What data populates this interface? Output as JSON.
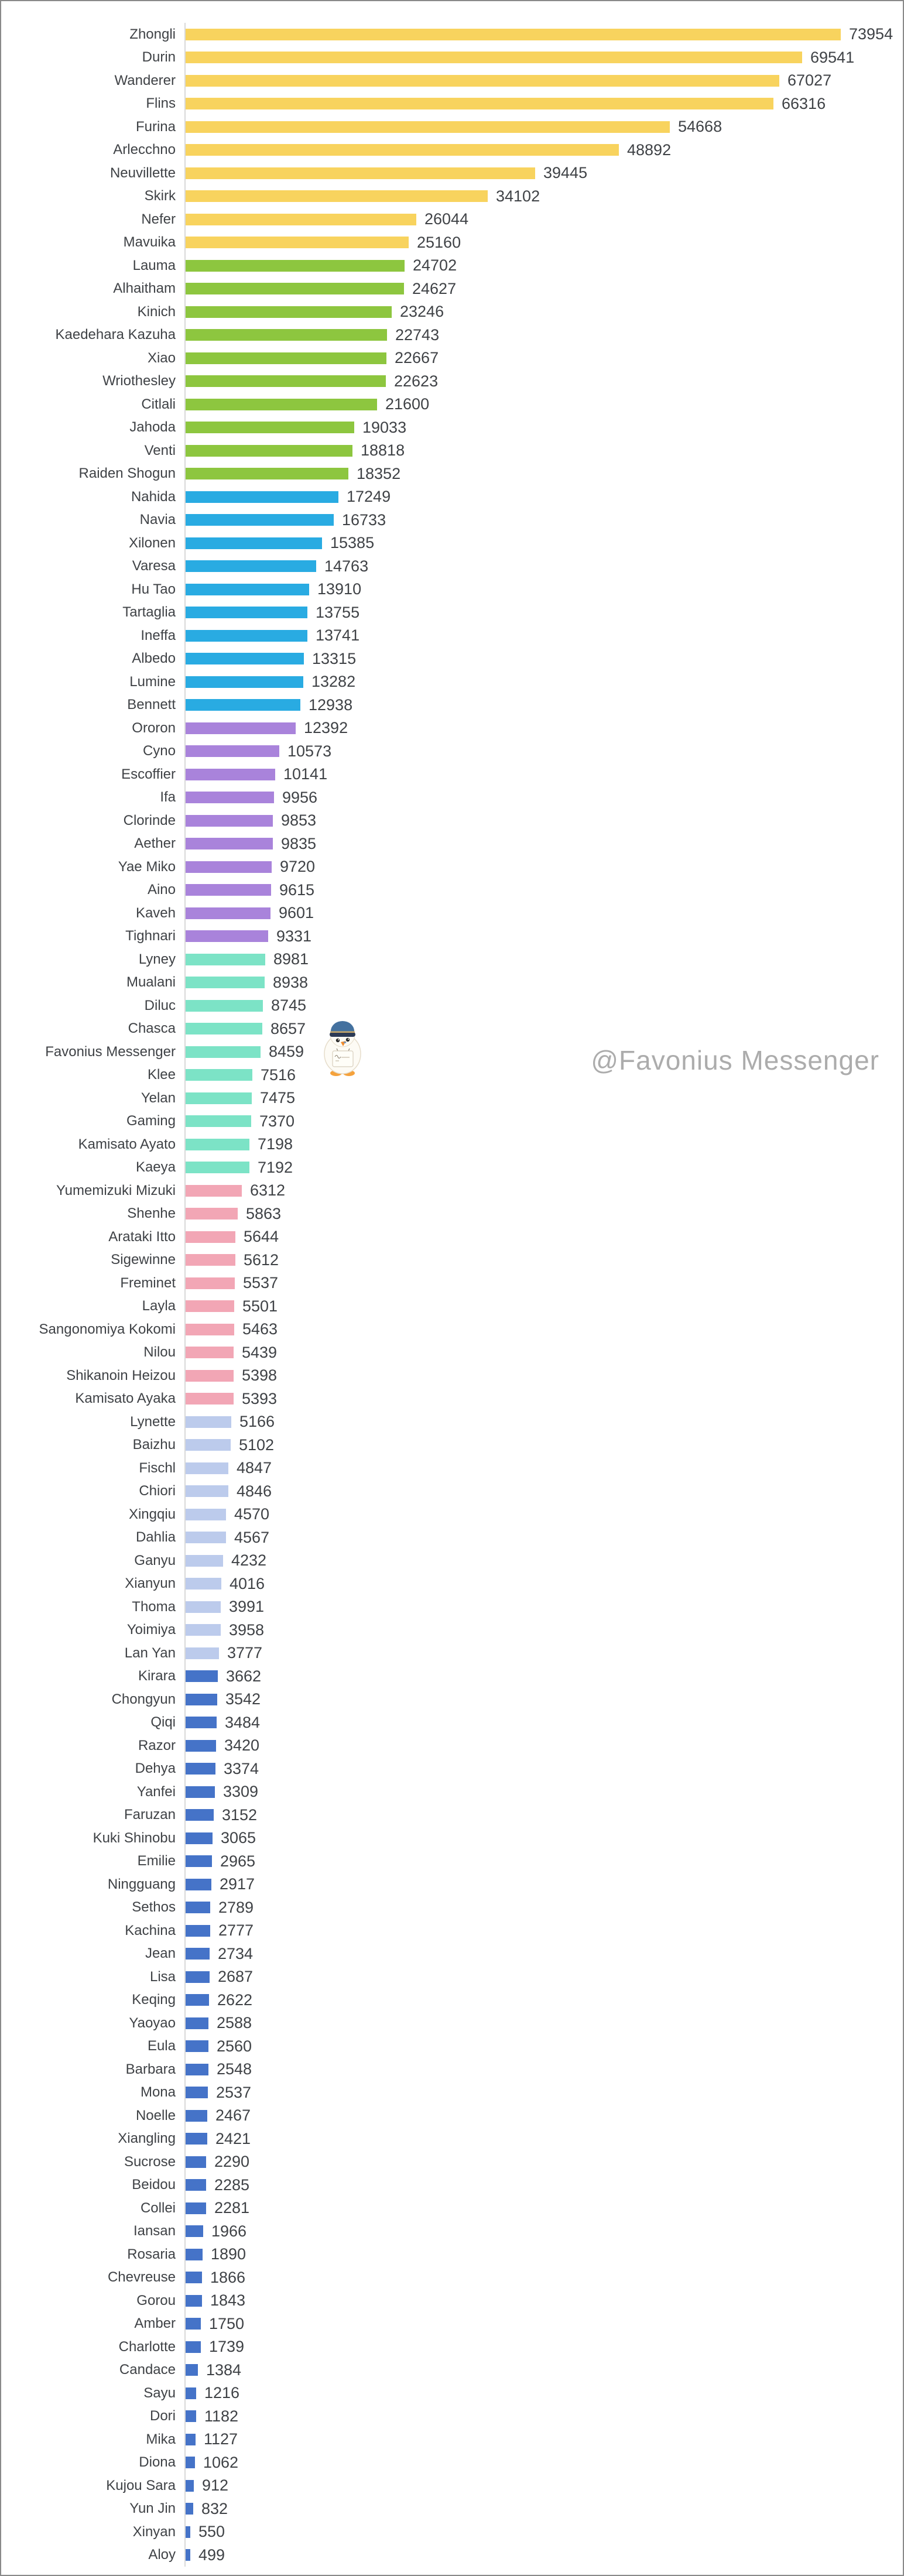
{
  "watermark": {
    "text": "@Favonius Messenger",
    "color": "#acacac"
  },
  "mascot": {
    "icon": "favonius-messenger-penguin-icon",
    "cap_color": "#44719f",
    "cap_band_color": "#2c3a55",
    "cap_trim_color": "#c9a86a",
    "body_color": "#fdfbf5",
    "beak_color": "#f08c2e",
    "feet_color": "#f5a23c"
  },
  "chart_data": {
    "type": "bar",
    "orientation": "horizontal",
    "title": "",
    "xlabel": "",
    "ylabel": "",
    "xlim": [
      0,
      74000
    ],
    "grid": false,
    "value_labels": true,
    "axis_line_color": "#d9d9d9",
    "label_color": "#3f4246",
    "categories": [
      "Zhongli",
      "Durin",
      "Wanderer",
      "Flins",
      "Furina",
      "Arlecchno",
      "Neuvillette",
      "Skirk",
      "Nefer",
      "Mavuika",
      "Lauma",
      "Alhaitham",
      "Kinich",
      "Kaedehara Kazuha",
      "Xiao",
      "Wriothesley",
      "Citlali",
      "Jahoda",
      "Venti",
      "Raiden Shogun",
      "Nahida",
      "Navia",
      "Xilonen",
      "Varesa",
      "Hu Tao",
      "Tartaglia",
      "Ineffa",
      "Albedo",
      "Lumine",
      "Bennett",
      "Ororon",
      "Cyno",
      "Escoffier",
      "Ifa",
      "Clorinde",
      "Aether",
      "Yae Miko",
      "Aino",
      "Kaveh",
      "Tighnari",
      "Lyney",
      "Mualani",
      "Diluc",
      "Chasca",
      "Favonius Messenger",
      "Klee",
      "Yelan",
      "Gaming",
      "Kamisato Ayato",
      "Kaeya",
      "Yumemizuki Mizuki",
      "Shenhe",
      "Arataki Itto",
      "Sigewinne",
      "Freminet",
      "Layla",
      "Sangonomiya Kokomi",
      "Nilou",
      "Shikanoin Heizou",
      "Kamisato Ayaka",
      "Lynette",
      "Baizhu",
      "Fischl",
      "Chiori",
      "Xingqiu",
      "Dahlia",
      "Ganyu",
      "Xianyun",
      "Thoma",
      "Yoimiya",
      "Lan Yan",
      "Kirara",
      "Chongyun",
      "Qiqi",
      "Razor",
      "Dehya",
      "Yanfei",
      "Faruzan",
      "Kuki Shinobu",
      "Emilie",
      "Ningguang",
      "Sethos",
      "Kachina",
      "Jean",
      "Lisa",
      "Keqing",
      "Yaoyao",
      "Eula",
      "Barbara",
      "Mona",
      "Noelle",
      "Xiangling",
      "Sucrose",
      "Beidou",
      "Collei",
      "Iansan",
      "Rosaria",
      "Chevreuse",
      "Gorou",
      "Amber",
      "Charlotte",
      "Candace",
      "Sayu",
      "Dori",
      "Mika",
      "Diona",
      "Kujou Sara",
      "Yun Jin",
      "Xinyan",
      "Aloy"
    ],
    "values": [
      73954,
      69541,
      67027,
      66316,
      54668,
      48892,
      39445,
      34102,
      26044,
      25160,
      24702,
      24627,
      23246,
      22743,
      22667,
      22623,
      21600,
      19033,
      18818,
      18352,
      17249,
      16733,
      15385,
      14763,
      13910,
      13755,
      13741,
      13315,
      13282,
      12938,
      12392,
      10573,
      10141,
      9956,
      9853,
      9835,
      9720,
      9615,
      9601,
      9331,
      8981,
      8938,
      8745,
      8657,
      8459,
      7516,
      7475,
      7370,
      7198,
      7192,
      6312,
      5863,
      5644,
      5612,
      5537,
      5501,
      5463,
      5439,
      5398,
      5393,
      5166,
      5102,
      4847,
      4846,
      4570,
      4567,
      4232,
      4016,
      3991,
      3958,
      3777,
      3662,
      3542,
      3484,
      3420,
      3374,
      3309,
      3152,
      3065,
      2965,
      2917,
      2789,
      2777,
      2734,
      2687,
      2622,
      2588,
      2560,
      2548,
      2537,
      2467,
      2421,
      2290,
      2285,
      2281,
      1966,
      1890,
      1866,
      1843,
      1750,
      1739,
      1384,
      1216,
      1182,
      1127,
      1062,
      912,
      832,
      550,
      499
    ],
    "bar_color_groups": [
      {
        "from": 0,
        "to": 9,
        "color": "#f8d35e",
        "label": "yellow"
      },
      {
        "from": 10,
        "to": 19,
        "color": "#8dc63f",
        "label": "green"
      },
      {
        "from": 20,
        "to": 29,
        "color": "#29abe2",
        "label": "cyan"
      },
      {
        "from": 30,
        "to": 39,
        "color": "#a983db",
        "label": "purple"
      },
      {
        "from": 40,
        "to": 49,
        "color": "#7ce3c6",
        "label": "mint"
      },
      {
        "from": 50,
        "to": 59,
        "color": "#f2a6b5",
        "label": "pink"
      },
      {
        "from": 60,
        "to": 70,
        "color": "#bccbec",
        "label": "periwinkle"
      },
      {
        "from": 71,
        "to": 109,
        "color": "#4573c8",
        "label": "blue"
      }
    ]
  }
}
